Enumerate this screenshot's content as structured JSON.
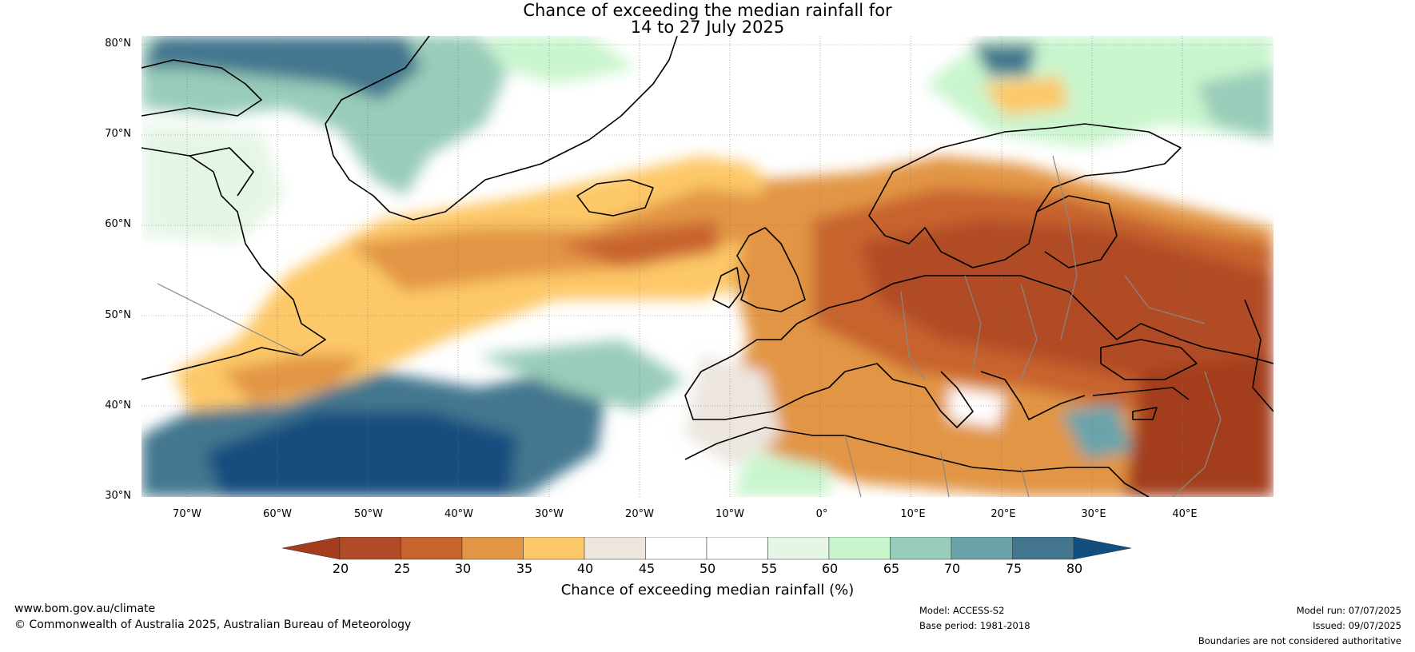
{
  "title": {
    "line1": "Chance of exceeding the median rainfall for",
    "line2": "14 to 27 July 2025"
  },
  "map": {
    "lat_labels": [
      "80°N",
      "70°N",
      "60°N",
      "50°N",
      "40°N",
      "30°N"
    ],
    "lon_labels": [
      "70°W",
      "60°W",
      "50°W",
      "40°W",
      "30°W",
      "20°W",
      "10°W",
      "0°",
      "10°E",
      "20°E",
      "30°E",
      "40°E"
    ],
    "lat_range": [
      30,
      80
    ],
    "lon_range": [
      -75,
      50
    ],
    "regions": [
      "North Atlantic",
      "Greenland",
      "Iceland",
      "Europe",
      "Mediterranean",
      "North Africa",
      "Eastern North America"
    ]
  },
  "legend": {
    "label": "Chance of exceeding median rainfall (%)",
    "ticks": [
      "20",
      "25",
      "30",
      "35",
      "40",
      "45",
      "50",
      "55",
      "60",
      "65",
      "70",
      "75",
      "80"
    ],
    "colors": [
      "#a33d1e",
      "#b14c28",
      "#c8632f",
      "#e29545",
      "#fdc868",
      "#ece6df",
      "#ffffff",
      "#ffffff",
      "#e6f6e6",
      "#c9f5cd",
      "#99ccb9",
      "#6aa4aa",
      "#43778f",
      "#124e7e"
    ],
    "extend": "both"
  },
  "footer": {
    "url": "www.bom.gov.au/climate",
    "copyright": "© Commonwealth of Australia 2025, Australian Bureau of Meteorology",
    "model": "Model: ACCESS-S2",
    "base_period": "Base period: 1981-2018",
    "model_run": "Model run: 07/07/2025",
    "issued": "Issued: 09/07/2025",
    "boundaries": "Boundaries are not considered authoritative"
  }
}
